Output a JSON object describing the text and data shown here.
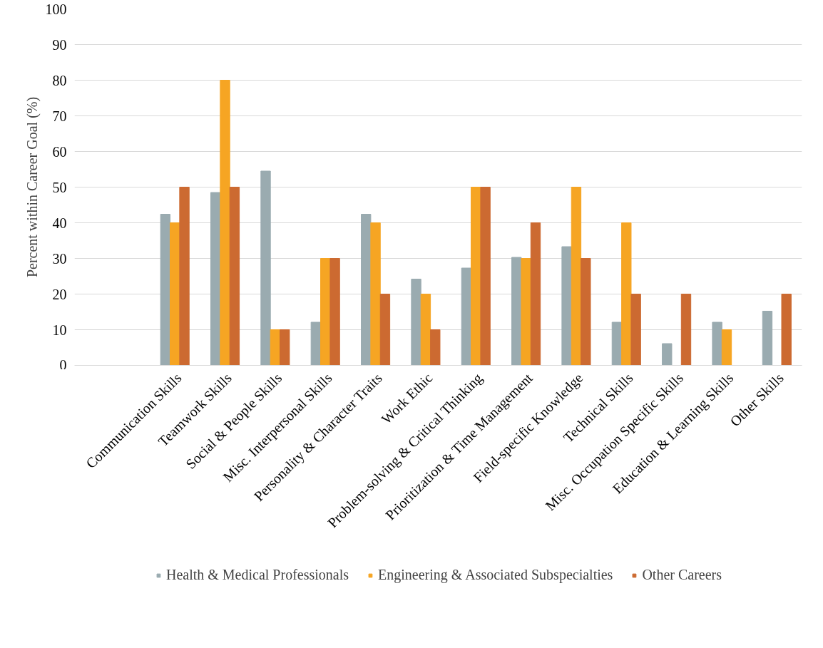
{
  "chart_data": {
    "type": "bar",
    "ylabel": "Percent within Career Goal (%)",
    "categories": [
      "Communication Skills",
      "Teamwork Skills",
      "Social & People Skills",
      "Misc. Interpersonal Skills",
      "Personality & Character Traits",
      "Work Ethic",
      "Problem-solving & Critical Thinking",
      "Prioritization & Time Management",
      "Field-specific Knowledge",
      "Technical Skills",
      "Misc. Occupation Specific Skills",
      "Education & Learning Skills",
      "Other Skills"
    ],
    "series": [
      {
        "name": "Health & Medical Professionals",
        "color": "#9aabb0",
        "values": [
          42.4,
          48.5,
          54.5,
          12.1,
          42.4,
          24.2,
          27.3,
          30.3,
          33.3,
          12.1,
          6.1,
          12.1,
          15.2
        ]
      },
      {
        "name": "Engineering & Associated Subspecialties",
        "color": "#f6a523",
        "values": [
          40,
          80,
          10,
          30,
          40,
          20,
          50,
          30,
          50,
          40,
          0,
          10,
          0
        ]
      },
      {
        "name": "Other Careers",
        "color": "#cc6a31",
        "values": [
          50,
          50,
          10,
          30,
          20,
          10,
          50,
          40,
          30,
          20,
          20,
          0,
          20
        ]
      }
    ],
    "ylim": [
      0,
      100
    ],
    "yticks": [
      0,
      10,
      20,
      30,
      40,
      50,
      60,
      70,
      80,
      90,
      100
    ],
    "grid": "y",
    "legend": "bottom"
  }
}
